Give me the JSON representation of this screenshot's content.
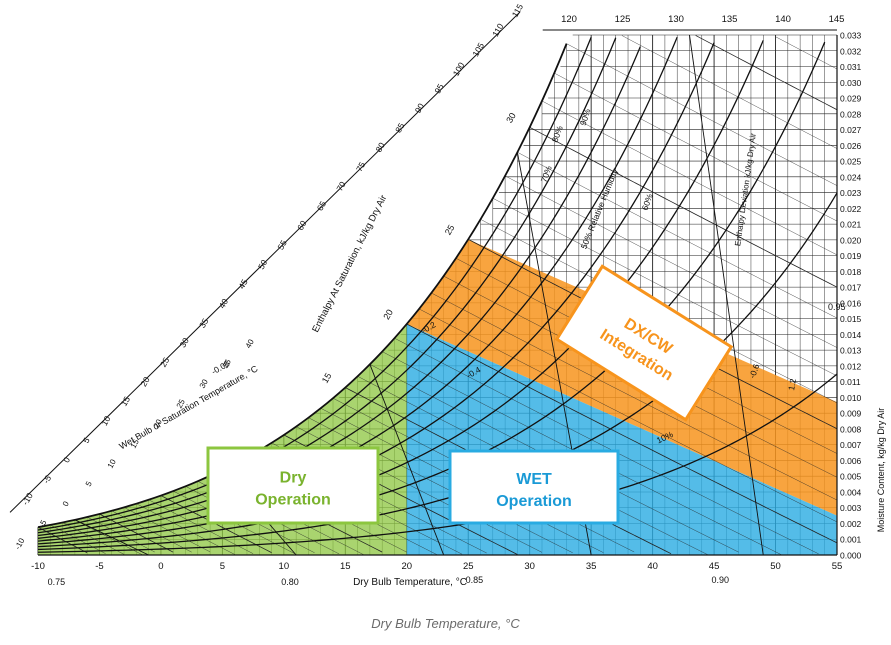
{
  "caption": "Dry Bulb Temperature, °C",
  "chart_data": {
    "type": "psychrometric-chart",
    "grid": true,
    "xlabel": "Dry Bulb Temperature, °C",
    "ylabel": "Moisture Content, kg/kg Dry Air",
    "xlim": [
      -10,
      55
    ],
    "ylim": [
      0.0,
      0.033
    ],
    "x_ticks": [
      "-10",
      "-5",
      "0",
      "5",
      "10",
      "15",
      "20",
      "25",
      "30",
      "35",
      "40",
      "45",
      "50",
      "55"
    ],
    "y_ticks": [
      "0.000",
      "0.001",
      "0.002",
      "0.003",
      "0.004",
      "0.005",
      "0.006",
      "0.007",
      "0.008",
      "0.009",
      "0.010",
      "0.011",
      "0.012",
      "0.013",
      "0.014",
      "0.015",
      "0.016",
      "0.017",
      "0.018",
      "0.019",
      "0.020",
      "0.021",
      "0.022",
      "0.023",
      "0.024",
      "0.025",
      "0.026",
      "0.027",
      "0.028",
      "0.029",
      "0.030",
      "0.031",
      "0.032",
      "0.033"
    ],
    "enthalpy_label": "Enthalpy At Saturation, kJ/kg Dry Air",
    "enthalpy_ticks": [
      "-10",
      "-5",
      "0",
      "5",
      "10",
      "15",
      "20",
      "25",
      "30",
      "35",
      "40",
      "45",
      "50",
      "55",
      "60",
      "65",
      "70",
      "75",
      "80",
      "85",
      "90",
      "95",
      "100",
      "105",
      "110",
      "115"
    ],
    "top_enthalpy_ticks": [
      "120",
      "125",
      "130",
      "135",
      "140",
      "145"
    ],
    "wet_bulb_label": "Wet Bulb or Saturation Temperature, °C",
    "wet_bulb_ticks": [
      "-10",
      "-5",
      "0",
      "5",
      "10",
      "15",
      "20",
      "25",
      "30",
      "35",
      "40"
    ],
    "wet_bulb_marks": [
      "15",
      "20",
      "25",
      "30",
      "35",
      "40"
    ],
    "volume_ticks": [
      "0.75",
      "0.80",
      "0.85",
      "0.90",
      "0.95"
    ],
    "rh_lines": [
      10,
      20,
      30,
      40,
      50,
      60,
      70,
      80,
      90,
      100
    ],
    "rh_labels": [
      "10%",
      "50% Relative Humidity",
      "60%",
      "70%",
      "80%",
      "90%"
    ],
    "enthalpy_deviation_label": "Enthalpy Deviation kJ/kg Dry Air",
    "deviation_marks": [
      "-0.05",
      "-0.2",
      "-0.4",
      "-0.6",
      "1.2"
    ],
    "regions": [
      {
        "label_lines": [
          "Dry",
          "Operation"
        ],
        "color": "#8cc63f",
        "text_color": "#7ab32e",
        "polygon": [
          [
            -10,
            0.0008
          ],
          [
            20,
            0.0147
          ],
          [
            20,
            0.0
          ]
        ]
      },
      {
        "label_lines": [
          "WET",
          "Operation"
        ],
        "color": "#29abe2",
        "text_color": "#1a9ad6",
        "polygon": [
          [
            20,
            0.0147
          ],
          [
            20,
            0.0
          ],
          [
            55,
            0.0
          ],
          [
            55,
            0.0
          ]
        ]
      },
      {
        "label_lines": [
          "DX/CW",
          "Integration"
        ],
        "color": "#f7941d",
        "text_color": "#f7941d",
        "polygon": [
          [
            20,
            0.0147
          ],
          [
            25,
            0.0201
          ],
          [
            55,
            0.0097
          ],
          [
            55,
            0.0025
          ]
        ]
      }
    ]
  }
}
